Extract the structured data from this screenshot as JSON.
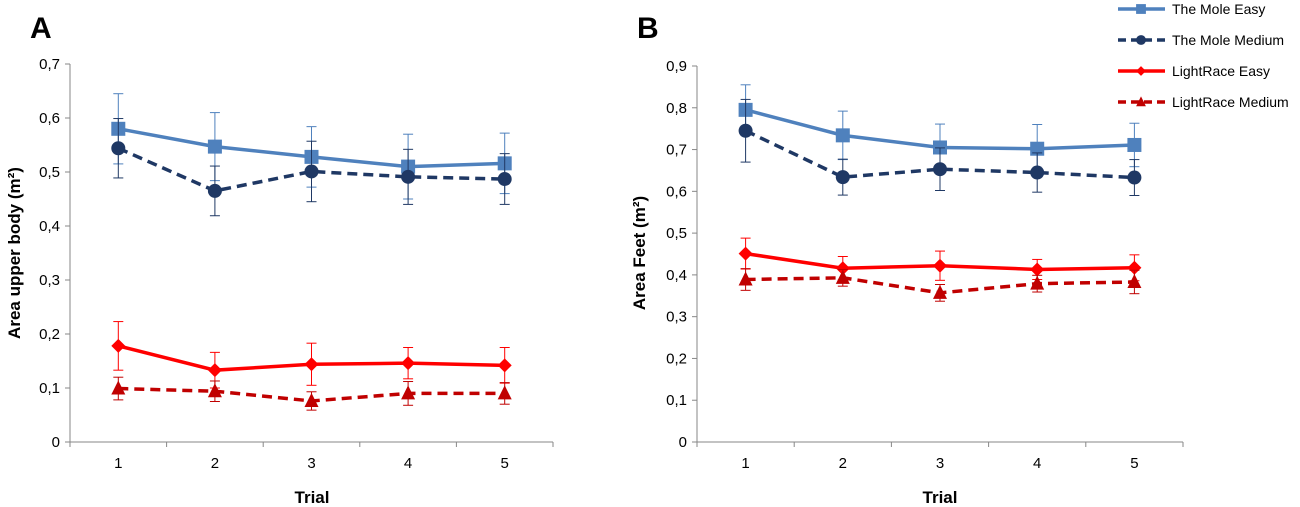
{
  "chart_data": [
    {
      "panel_label": "A",
      "type": "line",
      "xlabel": "Trial",
      "ylabel": "Area upper body (m²)",
      "categories": [
        "1",
        "2",
        "3",
        "4",
        "5"
      ],
      "ylim": [
        0,
        0.7
      ],
      "yticks": [
        "0",
        "0,1",
        "0,2",
        "0,3",
        "0,4",
        "0,5",
        "0,6",
        "0,7"
      ],
      "series": [
        {
          "name": "The Mole Easy",
          "values": [
            0.58,
            0.547,
            0.528,
            0.51,
            0.516
          ],
          "errors": [
            0.065,
            0.063,
            0.056,
            0.06,
            0.056
          ]
        },
        {
          "name": "The Mole Medium",
          "values": [
            0.544,
            0.465,
            0.501,
            0.491,
            0.487
          ],
          "errors": [
            0.055,
            0.046,
            0.056,
            0.051,
            0.047
          ]
        },
        {
          "name": "LightRace Easy",
          "values": [
            0.178,
            0.133,
            0.144,
            0.146,
            0.142
          ],
          "errors": [
            0.045,
            0.033,
            0.039,
            0.029,
            0.033
          ]
        },
        {
          "name": "LightRace Medium",
          "values": [
            0.099,
            0.094,
            0.076,
            0.09,
            0.09
          ],
          "errors": [
            0.021,
            0.019,
            0.017,
            0.022,
            0.02
          ]
        }
      ]
    },
    {
      "panel_label": "B",
      "type": "line",
      "xlabel": "Trial",
      "ylabel": "Area Feet (m²)",
      "categories": [
        "1",
        "2",
        "3",
        "4",
        "5"
      ],
      "ylim": [
        0,
        0.9
      ],
      "yticks": [
        "0",
        "0,1",
        "0,2",
        "0,3",
        "0,4",
        "0,5",
        "0,6",
        "0,7",
        "0,8",
        "0,9"
      ],
      "series": [
        {
          "name": "The Mole Easy",
          "values": [
            0.795,
            0.734,
            0.705,
            0.702,
            0.711
          ],
          "errors": [
            0.06,
            0.058,
            0.056,
            0.058,
            0.052
          ]
        },
        {
          "name": "The Mole Medium",
          "values": [
            0.745,
            0.634,
            0.653,
            0.645,
            0.633
          ],
          "errors": [
            0.075,
            0.043,
            0.051,
            0.047,
            0.043
          ]
        },
        {
          "name": "LightRace Easy",
          "values": [
            0.451,
            0.416,
            0.422,
            0.413,
            0.417
          ],
          "errors": [
            0.037,
            0.028,
            0.035,
            0.024,
            0.031
          ]
        },
        {
          "name": "LightRace Medium",
          "values": [
            0.389,
            0.393,
            0.357,
            0.379,
            0.383
          ],
          "errors": [
            0.026,
            0.02,
            0.02,
            0.02,
            0.028
          ]
        }
      ]
    }
  ],
  "legend": [
    {
      "name": "The Mole Easy",
      "color": "#4f81bd",
      "dashed": false,
      "marker": "square"
    },
    {
      "name": "The Mole Medium",
      "color": "#1f3864",
      "dashed": true,
      "marker": "circle"
    },
    {
      "name": "LightRace Easy",
      "color": "#ff0000",
      "dashed": false,
      "marker": "diamond"
    },
    {
      "name": "LightRace Medium",
      "color": "#c00000",
      "dashed": true,
      "marker": "triangle"
    }
  ],
  "colors": {
    "mole_easy": "#4f81bd",
    "mole_medium": "#1f3864",
    "light_easy": "#ff0000",
    "light_medium": "#c00000",
    "axis": "#878787"
  }
}
